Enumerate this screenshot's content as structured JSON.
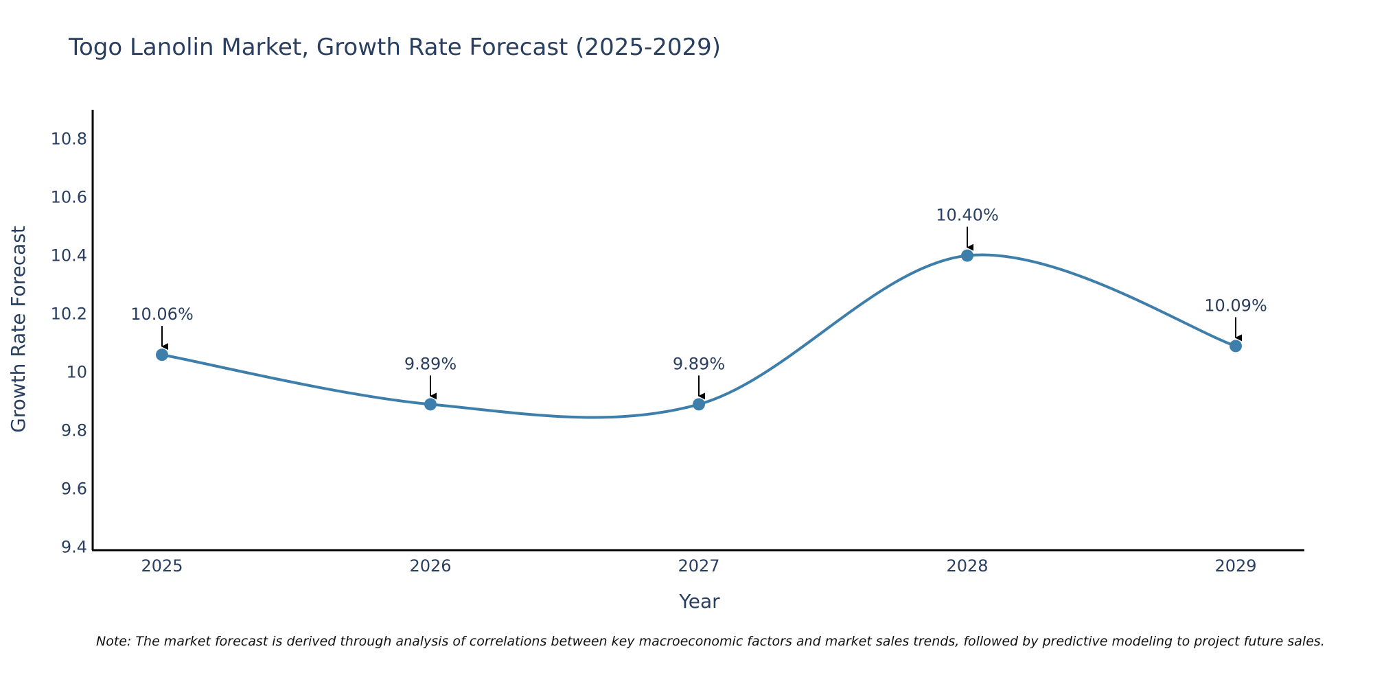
{
  "chart_data": {
    "type": "line",
    "title": "Togo Lanolin Market, Growth Rate Forecast (2025-2029)",
    "xlabel": "Year",
    "ylabel": "Growth Rate Forecast",
    "categories": [
      "2025",
      "2026",
      "2027",
      "2028",
      "2029"
    ],
    "series": [
      {
        "name": "Growth Rate Forecast",
        "values": [
          10.06,
          9.89,
          9.89,
          10.4,
          10.09
        ],
        "labels": [
          "10.06%",
          "9.89%",
          "9.89%",
          "10.40%",
          "10.09%"
        ],
        "color": "#3d7eaa"
      }
    ],
    "ylim": [
      9.39,
      10.9
    ],
    "yticks": [
      9.4,
      9.6,
      9.8,
      10,
      10.2,
      10.4,
      10.6,
      10.8
    ],
    "ytick_labels": [
      "9.4",
      "9.6",
      "9.8",
      "10",
      "10.2",
      "10.4",
      "10.6",
      "10.8"
    ],
    "grid": false,
    "line_shape": "spline",
    "note": "Note: The market forecast is derived through analysis of correlations between key macroeconomic factors and market sales trends, followed by predictive modeling to project future sales."
  },
  "colors": {
    "axis": "#000000",
    "text": "#2a3f5f",
    "line": "#3d7eaa",
    "arrow": "#000000"
  }
}
